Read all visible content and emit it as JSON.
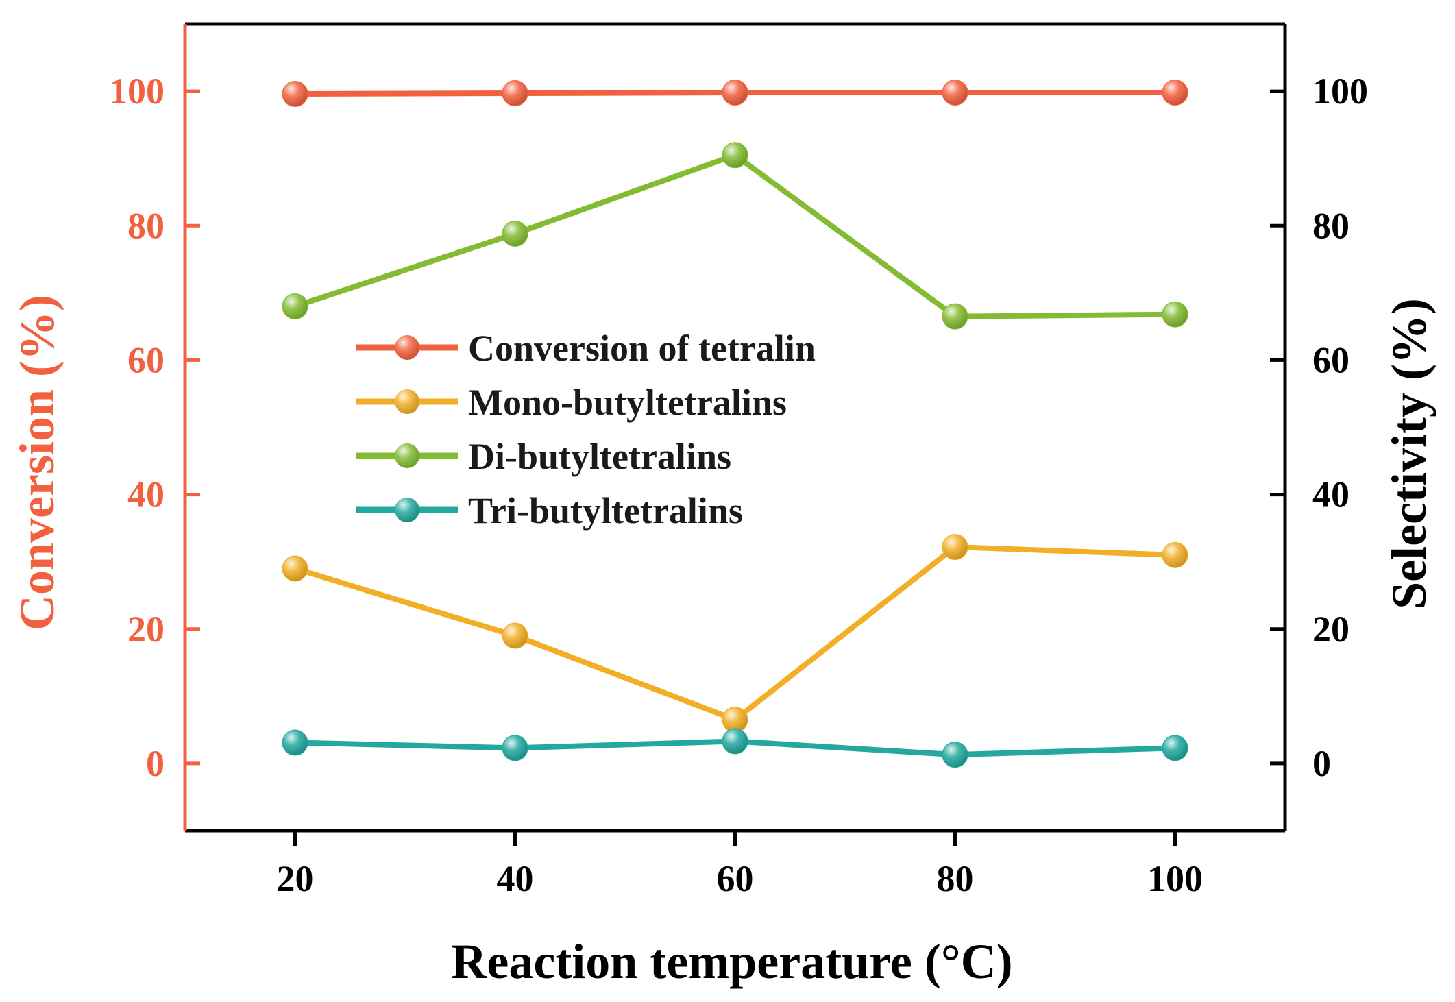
{
  "chart_data": {
    "type": "line",
    "title": "",
    "xlabel": "Reaction temperature (°C)",
    "ylabel_left": "Conversion (%)",
    "ylabel_right": "Selectivity (%)",
    "x": [
      20,
      40,
      60,
      80,
      100
    ],
    "x_ticks": [
      "20",
      "40",
      "60",
      "80",
      "100"
    ],
    "xlim": [
      10,
      110
    ],
    "ylim": [
      -10,
      110
    ],
    "y_ticks": [
      "0",
      "20",
      "40",
      "60",
      "80",
      "100"
    ],
    "y_tick_values": [
      0,
      20,
      40,
      60,
      80,
      100
    ],
    "legend_position": "center-left",
    "colors": {
      "left_axis": "#f2613f",
      "right_axis": "#000000"
    },
    "series": [
      {
        "name": "Conversion of tetralin",
        "color": "#f2613f",
        "axis": "left",
        "values": [
          99.6,
          99.7,
          99.8,
          99.8,
          99.8
        ]
      },
      {
        "name": "Mono-butyltetralins",
        "color": "#f2ae26",
        "axis": "right",
        "values": [
          29,
          19,
          6.5,
          32.2,
          31
        ]
      },
      {
        "name": "Di-butyltetralins",
        "color": "#83bb33",
        "axis": "right",
        "values": [
          68,
          78.8,
          90.5,
          66.5,
          66.8
        ]
      },
      {
        "name": "Tri-butyltetralins",
        "color": "#22a89f",
        "axis": "right",
        "values": [
          3.1,
          2.3,
          3.3,
          1.3,
          2.3
        ]
      }
    ]
  }
}
